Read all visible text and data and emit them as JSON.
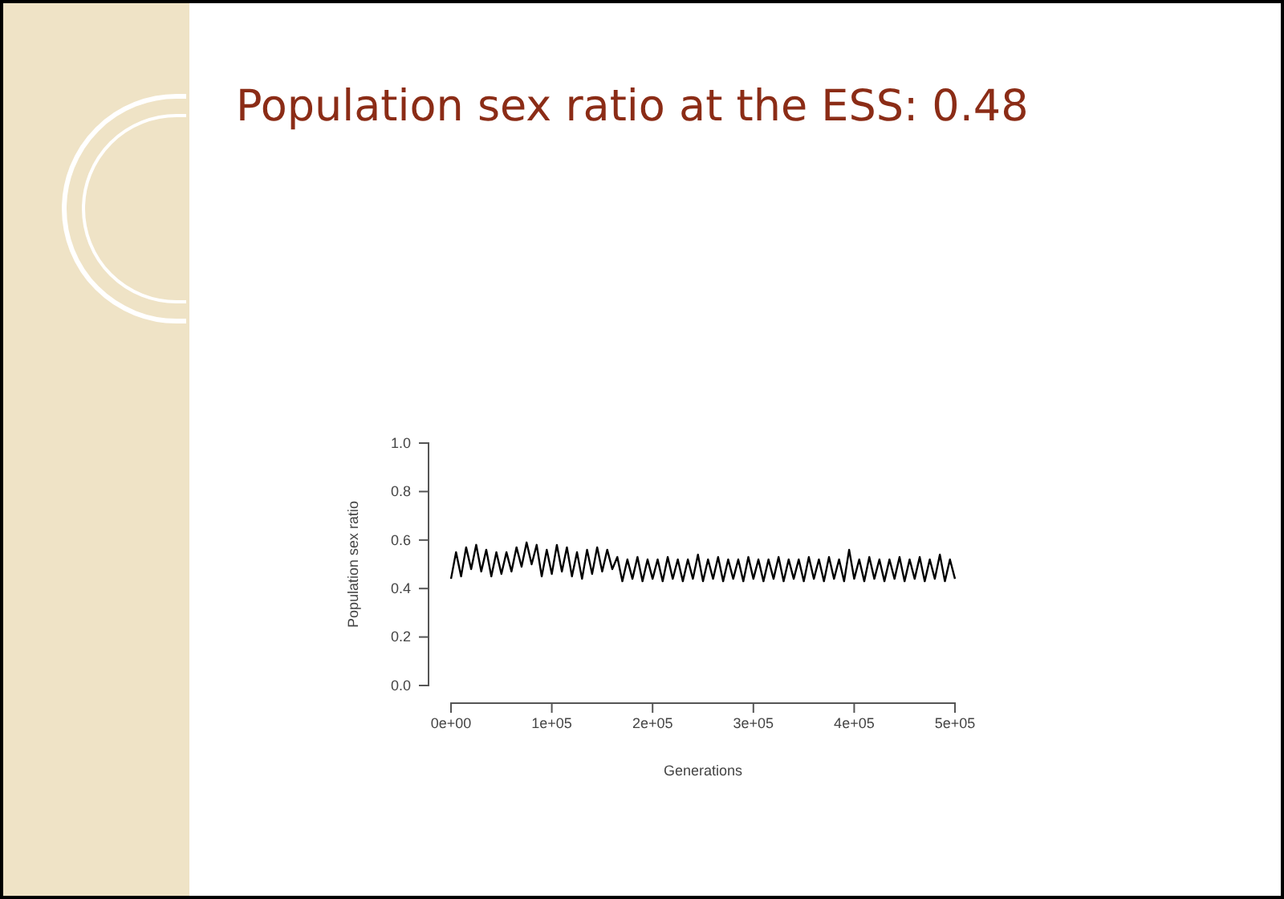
{
  "chart_data": {
    "type": "line",
    "title": "Population sex ratio at the ESS: 0.48",
    "xlabel": "Generations",
    "ylabel": "Population sex ratio",
    "x": [
      0,
      5000,
      10000,
      15000,
      20000,
      25000,
      30000,
      35000,
      40000,
      45000,
      50000,
      55000,
      60000,
      65000,
      70000,
      75000,
      80000,
      85000,
      90000,
      95000,
      100000,
      105000,
      110000,
      115000,
      120000,
      125000,
      130000,
      135000,
      140000,
      145000,
      150000,
      155000,
      160000,
      165000,
      170000,
      175000,
      180000,
      185000,
      190000,
      195000,
      200000,
      205000,
      210000,
      215000,
      220000,
      225000,
      230000,
      235000,
      240000,
      245000,
      250000,
      255000,
      260000,
      265000,
      270000,
      275000,
      280000,
      285000,
      290000,
      295000,
      300000,
      305000,
      310000,
      315000,
      320000,
      325000,
      330000,
      335000,
      340000,
      345000,
      350000,
      355000,
      360000,
      365000,
      370000,
      375000,
      380000,
      385000,
      390000,
      395000,
      400000,
      405000,
      410000,
      415000,
      420000,
      425000,
      430000,
      435000,
      440000,
      445000,
      450000,
      455000,
      460000,
      465000,
      470000,
      475000,
      480000,
      485000,
      490000,
      495000,
      500000
    ],
    "series": [
      {
        "color": "#000000",
        "values": [
          0.44,
          0.55,
          0.45,
          0.57,
          0.48,
          0.58,
          0.47,
          0.56,
          0.45,
          0.55,
          0.46,
          0.55,
          0.47,
          0.57,
          0.49,
          0.59,
          0.5,
          0.58,
          0.45,
          0.56,
          0.46,
          0.58,
          0.47,
          0.57,
          0.45,
          0.55,
          0.44,
          0.56,
          0.46,
          0.57,
          0.47,
          0.56,
          0.48,
          0.53,
          0.43,
          0.52,
          0.44,
          0.53,
          0.43,
          0.52,
          0.44,
          0.52,
          0.43,
          0.53,
          0.44,
          0.52,
          0.43,
          0.52,
          0.44,
          0.54,
          0.43,
          0.52,
          0.44,
          0.53,
          0.43,
          0.52,
          0.44,
          0.52,
          0.43,
          0.53,
          0.44,
          0.52,
          0.43,
          0.52,
          0.44,
          0.53,
          0.43,
          0.52,
          0.44,
          0.52,
          0.43,
          0.53,
          0.44,
          0.52,
          0.43,
          0.53,
          0.44,
          0.52,
          0.43,
          0.56,
          0.44,
          0.52,
          0.43,
          0.53,
          0.44,
          0.52,
          0.43,
          0.52,
          0.44,
          0.53,
          0.43,
          0.52,
          0.44,
          0.53,
          0.43,
          0.52,
          0.44,
          0.54,
          0.43,
          0.52,
          0.44
        ]
      }
    ],
    "xlim": [
      0,
      500000
    ],
    "xticks": [
      {
        "value": 0,
        "label": "0e+00"
      },
      {
        "value": 100000,
        "label": "1e+05"
      },
      {
        "value": 200000,
        "label": "2e+05"
      },
      {
        "value": 300000,
        "label": "3e+05"
      },
      {
        "value": 400000,
        "label": "4e+05"
      },
      {
        "value": 500000,
        "label": "5e+05"
      }
    ],
    "ylim": [
      0,
      1
    ],
    "yticks": [
      {
        "value": 0,
        "label": "0.0"
      },
      {
        "value": 0.2,
        "label": "0.2"
      },
      {
        "value": 0.4,
        "label": "0.4"
      },
      {
        "value": 0.6,
        "label": "0.6"
      },
      {
        "value": 0.8,
        "label": "0.8"
      },
      {
        "value": 1,
        "label": "1.0"
      }
    ]
  }
}
